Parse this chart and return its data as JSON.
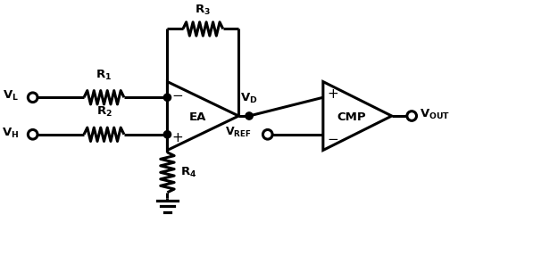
{
  "bg_color": "#ffffff",
  "line_color": "#000000",
  "lw": 2.2,
  "fig_w": 5.97,
  "fig_h": 3.14,
  "dpi": 100
}
